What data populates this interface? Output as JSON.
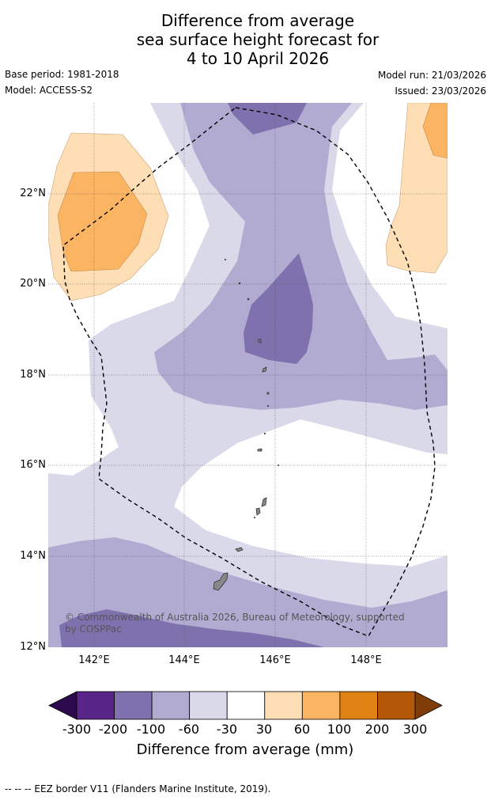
{
  "title": {
    "line1": "Difference from average",
    "line2": "sea surface height forecast for",
    "line3": "4 to 10 April 2026"
  },
  "meta": {
    "base_period": "Base period: 1981-2018",
    "model": "Model: ACCESS-S2",
    "model_run": "Model run: 21/03/2026",
    "issued": "Issued: 23/03/2026"
  },
  "map": {
    "lat_labels": [
      "22°N",
      "20°N",
      "18°N",
      "16°N",
      "14°N",
      "12°N"
    ],
    "lon_labels": [
      "142°E",
      "144°E",
      "146°E",
      "148°E"
    ],
    "copyright": "© Commonwealth of Australia 2026, Bureau of Meteorology, supported by COSPPac"
  },
  "colorbar": {
    "ticks": [
      "-300",
      "-200",
      "-100",
      "-60",
      "-30",
      "30",
      "60",
      "100",
      "200",
      "300"
    ],
    "colors": [
      "#2d0a4e",
      "#5a2589",
      "#7f71ad",
      "#b1abd2",
      "#d9d9ea",
      "#ffffff",
      "#fedfb5",
      "#fbb462",
      "#e08214",
      "#b35806",
      "#7f3b08"
    ],
    "title": "Difference from average (mm)"
  },
  "legend_note": "--  --  -- EEZ border V11 (Flanders Marine Institute, 2019)."
}
